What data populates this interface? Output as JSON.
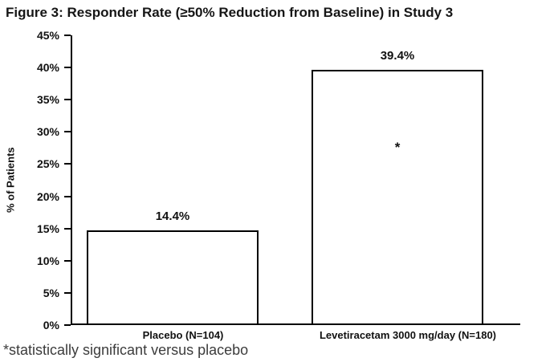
{
  "title": "Figure 3: Responder Rate (≥50% Reduction from Baseline) in Study 3",
  "footnote": "*statistically significant versus placebo",
  "chart_data": {
    "type": "bar",
    "title": "Figure 3: Responder Rate (≥50% Reduction from Baseline) in Study 3",
    "categories": [
      "Placebo (N=104)",
      "Levetiracetam 3000 mg/day (N=180)"
    ],
    "values": [
      14.4,
      39.4
    ],
    "value_labels": [
      "14.4%",
      "39.4%"
    ],
    "xlabel": "",
    "ylabel": "% of Patients",
    "ylim": [
      0,
      45
    ],
    "ytick_step": 5,
    "ytick_labels": [
      "0%",
      "5%",
      "10%",
      "15%",
      "20%",
      "25%",
      "30%",
      "35%",
      "40%",
      "45%"
    ],
    "grid": false,
    "legend": "none",
    "bar_fill_color": "#ffffff",
    "bar_border_color": "#000000",
    "annotations": [
      {
        "text": "*",
        "bar_index": 1,
        "y_value": 26,
        "meaning": "statistically significant versus placebo"
      }
    ]
  }
}
